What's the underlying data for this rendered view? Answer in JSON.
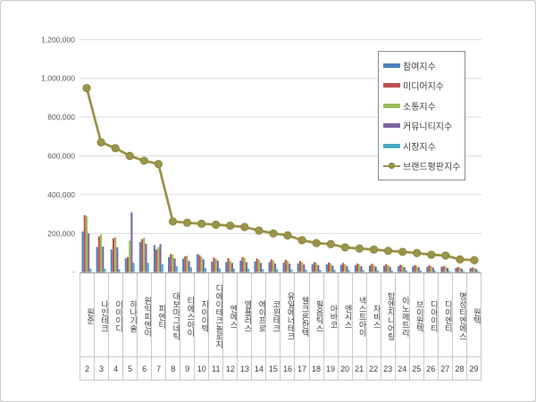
{
  "chart_data": {
    "type": "bar",
    "title": "",
    "xlabel": "",
    "ylabel": "",
    "ylim": [
      0,
      1200000
    ],
    "ytick_interval": 200000,
    "ytick_labels": [
      "-",
      "200,000",
      "400,000",
      "600,000",
      "800,000",
      "1,000,000",
      "1,200,000"
    ],
    "grid": true,
    "legend_position": "top-right",
    "categories": [
      "원준",
      "나인테크",
      "이아이디",
      "하나기술",
      "원익피엔이",
      "피엔티",
      "대보마그네틱",
      "티에스아이",
      "지아이텍",
      "디에이테크놀로지",
      "엔에스",
      "엠플러스",
      "에이프로",
      "코윈테크",
      "유일에너테크",
      "웰크론한텍",
      "필옵틱스",
      "아바코",
      "엔시스",
      "넥스트아이",
      "자비스",
      "탑엔지니어링",
      "이노메트리",
      "브이원텍",
      "디아이티",
      "디이엔티",
      "명성티엔에스",
      "원텍"
    ],
    "ranks": [
      "2",
      "3",
      "4",
      "5",
      "6",
      "7",
      "8",
      "9",
      "10",
      "11",
      "12",
      "13",
      "14",
      "15",
      "16",
      "17",
      "18",
      "19",
      "20",
      "21",
      "22",
      "23",
      "24",
      "25",
      "26",
      "27",
      "28",
      "29"
    ],
    "series": [
      {
        "name": "참여지수",
        "color": "#4f81bd",
        "values": [
          210000,
          130000,
          117000,
          71000,
          155000,
          140000,
          78000,
          70000,
          94000,
          55000,
          52000,
          60000,
          55000,
          52000,
          50000,
          45000,
          42000,
          40000,
          38000,
          36000,
          34000,
          33000,
          31000,
          30000,
          28000,
          27000,
          22000,
          20000
        ]
      },
      {
        "name": "미디어지수",
        "color": "#c0504d",
        "values": [
          295000,
          185000,
          175000,
          78000,
          171000,
          117000,
          94000,
          82000,
          88000,
          75000,
          72000,
          78000,
          70000,
          66000,
          64000,
          58000,
          52000,
          50000,
          48000,
          45000,
          43000,
          41000,
          39000,
          37000,
          35000,
          33000,
          27000,
          25000
        ]
      },
      {
        "name": "소통지수",
        "color": "#9bbb59",
        "values": [
          288000,
          195000,
          181000,
          163000,
          178000,
          129000,
          90000,
          85000,
          80000,
          70000,
          60000,
          74000,
          65000,
          60000,
          58000,
          52000,
          48000,
          45000,
          42000,
          40000,
          38000,
          36000,
          34000,
          33000,
          31000,
          29000,
          24000,
          22000
        ]
      },
      {
        "name": "커뮤니티지수",
        "color": "#8064a2",
        "values": [
          200000,
          132000,
          129000,
          309000,
          147000,
          145000,
          71000,
          57000,
          66000,
          60000,
          48000,
          52000,
          48000,
          45000,
          44000,
          40000,
          36000,
          34000,
          32000,
          30000,
          29000,
          28000,
          26000,
          25000,
          24000,
          22000,
          18000,
          17000
        ]
      },
      {
        "name": "시장지수",
        "color": "#4bacc6",
        "values": [
          18000,
          18000,
          15000,
          48000,
          48000,
          41000,
          32000,
          25000,
          22000,
          20000,
          18000,
          18000,
          16000,
          15000,
          14000,
          13000,
          12000,
          12000,
          11000,
          10000,
          10000,
          9000,
          9000,
          8000,
          8000,
          7000,
          6000,
          6000
        ]
      }
    ],
    "line_series": {
      "name": "브랜드평판지수",
      "color": "#9a9448",
      "marker_edge": "#827c35",
      "values": [
        950000,
        670000,
        640000,
        600000,
        575000,
        558000,
        262000,
        255000,
        250000,
        245000,
        240000,
        233000,
        215000,
        200000,
        190000,
        165000,
        150000,
        145000,
        128000,
        122000,
        117000,
        110000,
        105000,
        99000,
        90000,
        86000,
        66000,
        62000
      ]
    },
    "colors": {
      "gridline": "#d9d9d9",
      "axis_line": "#9d9d9d",
      "tick_text": "#595959",
      "label_text": "#3f3f3f",
      "table_border": "#c9c9c9",
      "legend_border": "#8c8c8c"
    }
  }
}
